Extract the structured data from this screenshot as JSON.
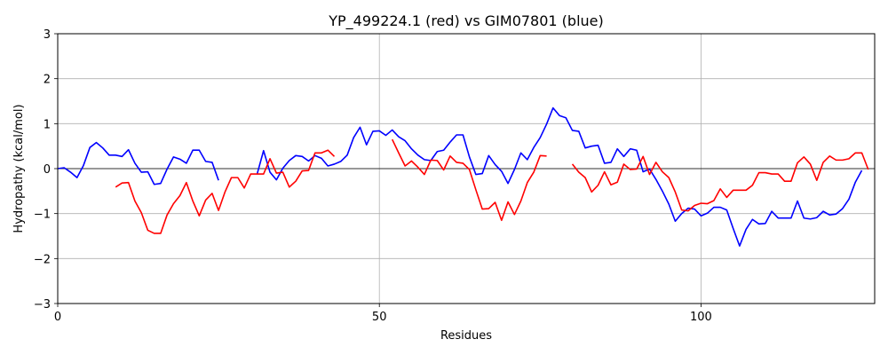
{
  "chart_data": {
    "type": "line",
    "title": "YP_499224.1 (red) vs GIM07801 (blue)",
    "xlabel": "Residues",
    "ylabel": "Hydropathy (kcal/mol)",
    "xlim": [
      0,
      127
    ],
    "ylim": [
      -3,
      3
    ],
    "xticks": [
      0,
      50,
      100
    ],
    "yticks": [
      -3,
      -2,
      -1,
      0,
      1,
      2,
      3
    ],
    "grid": true,
    "zero_line": true,
    "series": [
      {
        "color": "#0000ff",
        "segments": [
          [
            [
              0,
              0
            ],
            [
              1,
              0.02
            ],
            [
              2,
              -0.08
            ],
            [
              3,
              -0.2
            ],
            [
              4,
              0.07
            ],
            [
              5,
              0.47
            ],
            [
              6,
              0.58
            ],
            [
              7,
              0.46
            ],
            [
              8,
              0.3
            ],
            [
              9,
              0.3
            ],
            [
              10,
              0.27
            ],
            [
              11,
              0.42
            ],
            [
              12,
              0.12
            ],
            [
              13,
              -0.08
            ],
            [
              14,
              -0.07
            ],
            [
              15,
              -0.35
            ],
            [
              16,
              -0.33
            ],
            [
              17,
              -0.01
            ],
            [
              18,
              0.26
            ],
            [
              19,
              0.21
            ],
            [
              20,
              0.12
            ],
            [
              21,
              0.41
            ],
            [
              22,
              0.41
            ],
            [
              23,
              0.16
            ],
            [
              24,
              0.14
            ],
            [
              25,
              -0.26
            ]
          ],
          [
            [
              31,
              -0.12
            ],
            [
              32,
              0.4
            ],
            [
              33,
              -0.08
            ],
            [
              34,
              -0.25
            ],
            [
              35,
              0.01
            ],
            [
              36,
              0.18
            ],
            [
              37,
              0.29
            ],
            [
              38,
              0.27
            ],
            [
              39,
              0.17
            ],
            [
              40,
              0.29
            ],
            [
              41,
              0.23
            ],
            [
              42,
              0.06
            ],
            [
              43,
              0.1
            ],
            [
              44,
              0.16
            ],
            [
              45,
              0.3
            ],
            [
              46,
              0.69
            ],
            [
              47,
              0.92
            ],
            [
              48,
              0.53
            ],
            [
              49,
              0.83
            ],
            [
              50,
              0.84
            ],
            [
              51,
              0.74
            ],
            [
              52,
              0.86
            ],
            [
              53,
              0.71
            ],
            [
              54,
              0.62
            ],
            [
              55,
              0.44
            ],
            [
              56,
              0.3
            ],
            [
              57,
              0.2
            ],
            [
              58,
              0.18
            ],
            [
              59,
              0.38
            ],
            [
              60,
              0.41
            ],
            [
              61,
              0.59
            ],
            [
              62,
              0.75
            ],
            [
              63,
              0.75
            ],
            [
              64,
              0.26
            ],
            [
              65,
              -0.13
            ],
            [
              66,
              -0.11
            ],
            [
              67,
              0.29
            ],
            [
              68,
              0.09
            ],
            [
              69,
              -0.06
            ],
            [
              70,
              -0.33
            ],
            [
              71,
              -0.02
            ],
            [
              72,
              0.35
            ],
            [
              73,
              0.2
            ],
            [
              74,
              0.47
            ],
            [
              75,
              0.69
            ],
            [
              76,
              0.99
            ],
            [
              77,
              1.35
            ],
            [
              78,
              1.18
            ],
            [
              79,
              1.13
            ],
            [
              80,
              0.85
            ],
            [
              81,
              0.83
            ],
            [
              82,
              0.46
            ],
            [
              83,
              0.5
            ],
            [
              84,
              0.52
            ],
            [
              85,
              0.12
            ],
            [
              86,
              0.14
            ],
            [
              87,
              0.44
            ],
            [
              88,
              0.27
            ],
            [
              89,
              0.44
            ],
            [
              90,
              0.41
            ],
            [
              91,
              -0.07
            ],
            [
              92,
              -0.01
            ],
            [
              93,
              -0.24
            ],
            [
              94,
              -0.5
            ],
            [
              95,
              -0.79
            ],
            [
              96,
              -1.17
            ],
            [
              97,
              -1.0
            ],
            [
              98,
              -0.88
            ],
            [
              99,
              -0.9
            ],
            [
              100,
              -1.05
            ],
            [
              101,
              -0.99
            ],
            [
              102,
              -0.86
            ],
            [
              103,
              -0.86
            ],
            [
              104,
              -0.92
            ],
            [
              105,
              -1.33
            ],
            [
              106,
              -1.72
            ],
            [
              107,
              -1.35
            ],
            [
              108,
              -1.13
            ],
            [
              109,
              -1.23
            ],
            [
              110,
              -1.22
            ],
            [
              111,
              -0.95
            ],
            [
              112,
              -1.1
            ],
            [
              113,
              -1.1
            ],
            [
              114,
              -1.1
            ],
            [
              115,
              -0.72
            ],
            [
              116,
              -1.1
            ],
            [
              117,
              -1.12
            ],
            [
              118,
              -1.09
            ],
            [
              119,
              -0.95
            ],
            [
              120,
              -1.03
            ],
            [
              121,
              -1.01
            ],
            [
              122,
              -0.89
            ],
            [
              123,
              -0.68
            ],
            [
              124,
              -0.3
            ],
            [
              125,
              -0.04
            ]
          ]
        ]
      },
      {
        "color": "#ff0000",
        "segments": [
          [
            [
              9,
              -0.41
            ],
            [
              10,
              -0.32
            ],
            [
              11,
              -0.31
            ],
            [
              12,
              -0.72
            ],
            [
              13,
              -0.98
            ],
            [
              14,
              -1.37
            ],
            [
              15,
              -1.44
            ],
            [
              16,
              -1.44
            ],
            [
              17,
              -1.03
            ],
            [
              18,
              -0.78
            ],
            [
              19,
              -0.6
            ],
            [
              20,
              -0.31
            ],
            [
              21,
              -0.72
            ],
            [
              22,
              -1.05
            ],
            [
              23,
              -0.7
            ],
            [
              24,
              -0.55
            ],
            [
              25,
              -0.93
            ],
            [
              26,
              -0.52
            ],
            [
              27,
              -0.2
            ],
            [
              28,
              -0.2
            ],
            [
              29,
              -0.43
            ],
            [
              30,
              -0.12
            ],
            [
              31,
              -0.12
            ],
            [
              32,
              -0.12
            ],
            [
              33,
              0.22
            ],
            [
              34,
              -0.1
            ],
            [
              35,
              -0.08
            ],
            [
              36,
              -0.41
            ],
            [
              37,
              -0.28
            ],
            [
              38,
              -0.05
            ],
            [
              39,
              -0.04
            ],
            [
              40,
              0.35
            ],
            [
              41,
              0.35
            ],
            [
              42,
              0.41
            ],
            [
              43,
              0.27
            ]
          ],
          [
            [
              52,
              0.65
            ],
            [
              53,
              0.35
            ],
            [
              54,
              0.06
            ],
            [
              55,
              0.17
            ],
            [
              56,
              0.03
            ],
            [
              57,
              -0.13
            ],
            [
              58,
              0.19
            ],
            [
              59,
              0.18
            ],
            [
              60,
              -0.03
            ],
            [
              61,
              0.28
            ],
            [
              62,
              0.14
            ],
            [
              63,
              0.12
            ],
            [
              64,
              -0.02
            ],
            [
              65,
              -0.47
            ],
            [
              66,
              -0.9
            ],
            [
              67,
              -0.89
            ],
            [
              68,
              -0.75
            ],
            [
              69,
              -1.15
            ],
            [
              70,
              -0.74
            ],
            [
              71,
              -1.02
            ],
            [
              72,
              -0.72
            ],
            [
              73,
              -0.31
            ],
            [
              74,
              -0.08
            ],
            [
              75,
              0.29
            ],
            [
              76,
              0.28
            ]
          ],
          [
            [
              80,
              0.1
            ],
            [
              81,
              -0.08
            ],
            [
              82,
              -0.2
            ],
            [
              83,
              -0.52
            ],
            [
              84,
              -0.37
            ],
            [
              85,
              -0.07
            ],
            [
              86,
              -0.36
            ],
            [
              87,
              -0.3
            ],
            [
              88,
              0.1
            ],
            [
              89,
              -0.02
            ],
            [
              90,
              -0.01
            ],
            [
              91,
              0.27
            ],
            [
              92,
              -0.13
            ],
            [
              93,
              0.14
            ],
            [
              94,
              -0.07
            ],
            [
              95,
              -0.2
            ],
            [
              96,
              -0.52
            ],
            [
              97,
              -0.92
            ],
            [
              98,
              -0.94
            ],
            [
              99,
              -0.82
            ],
            [
              100,
              -0.77
            ],
            [
              101,
              -0.78
            ],
            [
              102,
              -0.71
            ],
            [
              103,
              -0.45
            ],
            [
              104,
              -0.64
            ],
            [
              105,
              -0.48
            ],
            [
              106,
              -0.48
            ],
            [
              107,
              -0.48
            ],
            [
              108,
              -0.37
            ],
            [
              109,
              -0.09
            ],
            [
              110,
              -0.09
            ],
            [
              111,
              -0.12
            ],
            [
              112,
              -0.12
            ],
            [
              113,
              -0.28
            ],
            [
              114,
              -0.28
            ],
            [
              115,
              0.13
            ],
            [
              116,
              0.26
            ],
            [
              117,
              0.1
            ],
            [
              118,
              -0.26
            ],
            [
              119,
              0.14
            ],
            [
              120,
              0.28
            ],
            [
              121,
              0.19
            ],
            [
              122,
              0.19
            ],
            [
              123,
              0.22
            ],
            [
              124,
              0.35
            ],
            [
              125,
              0.35
            ],
            [
              126,
              -0.02
            ]
          ]
        ]
      }
    ]
  }
}
